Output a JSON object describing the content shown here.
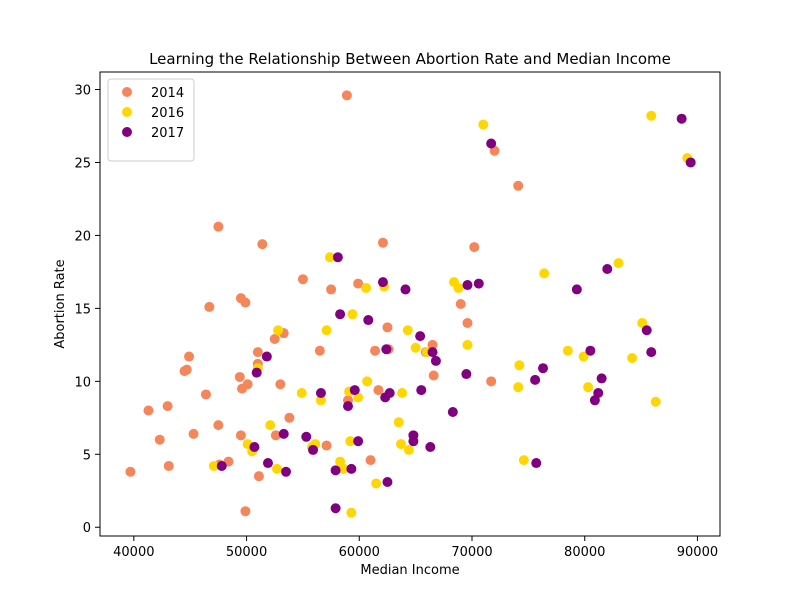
{
  "chart_data": {
    "type": "scatter",
    "title": "Learning the Relationship Between Abortion Rate and Median Income",
    "xlabel": "Median Income",
    "ylabel": "Abortion Rate",
    "xlim": [
      37000,
      92000
    ],
    "ylim": [
      -0.6,
      31.2
    ],
    "xticks": [
      40000,
      50000,
      60000,
      70000,
      80000,
      90000
    ],
    "yticks": [
      0,
      5,
      10,
      15,
      20,
      25,
      30
    ],
    "grid": false,
    "legend_position": "top-left",
    "series": [
      {
        "name": "2014",
        "color": "#f4865a",
        "points": [
          [
            39700,
            3.8
          ],
          [
            41300,
            8.0
          ],
          [
            42300,
            6.0
          ],
          [
            43000,
            8.3
          ],
          [
            43100,
            4.2
          ],
          [
            44500,
            10.7
          ],
          [
            44700,
            10.8
          ],
          [
            44900,
            11.7
          ],
          [
            45300,
            6.4
          ],
          [
            46400,
            9.1
          ],
          [
            46700,
            15.1
          ],
          [
            47500,
            7.0
          ],
          [
            47500,
            20.6
          ],
          [
            47600,
            4.3
          ],
          [
            48400,
            4.5
          ],
          [
            49400,
            10.3
          ],
          [
            49500,
            15.7
          ],
          [
            49500,
            6.3
          ],
          [
            49600,
            9.5
          ],
          [
            49900,
            1.1
          ],
          [
            49900,
            15.4
          ],
          [
            50100,
            9.8
          ],
          [
            50600,
            5.4
          ],
          [
            51000,
            12.0
          ],
          [
            51000,
            11.2
          ],
          [
            51100,
            3.5
          ],
          [
            51400,
            19.4
          ],
          [
            52500,
            12.9
          ],
          [
            52600,
            6.3
          ],
          [
            53000,
            9.8
          ],
          [
            53300,
            13.3
          ],
          [
            53800,
            7.5
          ],
          [
            55000,
            17.0
          ],
          [
            56500,
            12.1
          ],
          [
            57100,
            5.6
          ],
          [
            57500,
            16.3
          ],
          [
            58900,
            29.6
          ],
          [
            59000,
            8.7
          ],
          [
            59900,
            16.7
          ],
          [
            61000,
            4.6
          ],
          [
            61400,
            12.1
          ],
          [
            61700,
            9.4
          ],
          [
            62100,
            19.5
          ],
          [
            62500,
            13.7
          ],
          [
            62600,
            12.2
          ],
          [
            65900,
            12.0
          ],
          [
            66500,
            12.5
          ],
          [
            66600,
            10.4
          ],
          [
            69000,
            15.3
          ],
          [
            69600,
            14.0
          ],
          [
            70200,
            19.2
          ],
          [
            71700,
            10.0
          ],
          [
            72000,
            25.8
          ],
          [
            74100,
            23.4
          ]
        ]
      },
      {
        "name": "2016",
        "color": "#ffd700",
        "points": [
          [
            47100,
            4.2
          ],
          [
            50100,
            5.7
          ],
          [
            50500,
            5.2
          ],
          [
            51000,
            10.9
          ],
          [
            52100,
            7.0
          ],
          [
            52700,
            4.0
          ],
          [
            52800,
            13.5
          ],
          [
            54900,
            9.2
          ],
          [
            55800,
            5.5
          ],
          [
            56100,
            5.7
          ],
          [
            56600,
            8.7
          ],
          [
            57100,
            13.5
          ],
          [
            57400,
            18.5
          ],
          [
            58300,
            4.5
          ],
          [
            58600,
            4.0
          ],
          [
            59100,
            9.3
          ],
          [
            59200,
            5.9
          ],
          [
            59300,
            1.0
          ],
          [
            59400,
            14.6
          ],
          [
            59900,
            8.9
          ],
          [
            60600,
            16.4
          ],
          [
            60700,
            10.0
          ],
          [
            61500,
            3.0
          ],
          [
            62200,
            16.5
          ],
          [
            63500,
            7.2
          ],
          [
            63700,
            5.7
          ],
          [
            63800,
            9.2
          ],
          [
            64300,
            13.5
          ],
          [
            64400,
            5.3
          ],
          [
            65000,
            12.3
          ],
          [
            66000,
            12.0
          ],
          [
            68400,
            16.8
          ],
          [
            68800,
            16.4
          ],
          [
            69600,
            12.5
          ],
          [
            71000,
            27.6
          ],
          [
            74100,
            9.6
          ],
          [
            74200,
            11.1
          ],
          [
            74600,
            4.6
          ],
          [
            76400,
            17.4
          ],
          [
            78500,
            12.1
          ],
          [
            79900,
            11.7
          ],
          [
            80300,
            9.6
          ],
          [
            83000,
            18.1
          ],
          [
            84200,
            11.6
          ],
          [
            85100,
            14.0
          ],
          [
            85900,
            28.2
          ],
          [
            86300,
            8.6
          ],
          [
            89100,
            25.3
          ]
        ]
      },
      {
        "name": "2017",
        "color": "#800080",
        "points": [
          [
            47800,
            4.2
          ],
          [
            50700,
            5.5
          ],
          [
            50900,
            10.6
          ],
          [
            51800,
            11.7
          ],
          [
            51900,
            4.4
          ],
          [
            53300,
            6.4
          ],
          [
            53500,
            3.8
          ],
          [
            55300,
            6.2
          ],
          [
            55900,
            5.3
          ],
          [
            56600,
            9.2
          ],
          [
            57900,
            1.3
          ],
          [
            57900,
            3.9
          ],
          [
            58100,
            18.5
          ],
          [
            58300,
            14.6
          ],
          [
            59000,
            8.3
          ],
          [
            59300,
            4.0
          ],
          [
            59600,
            9.4
          ],
          [
            59900,
            5.9
          ],
          [
            60800,
            14.2
          ],
          [
            62100,
            16.8
          ],
          [
            62300,
            8.9
          ],
          [
            62400,
            12.2
          ],
          [
            62500,
            3.1
          ],
          [
            62700,
            9.2
          ],
          [
            64100,
            16.3
          ],
          [
            64800,
            6.3
          ],
          [
            64800,
            5.9
          ],
          [
            65400,
            13.1
          ],
          [
            65500,
            9.4
          ],
          [
            66300,
            5.5
          ],
          [
            66500,
            12.0
          ],
          [
            66800,
            11.4
          ],
          [
            68300,
            7.9
          ],
          [
            69500,
            10.5
          ],
          [
            69600,
            16.6
          ],
          [
            70600,
            16.7
          ],
          [
            71700,
            26.3
          ],
          [
            75600,
            10.1
          ],
          [
            75700,
            4.4
          ],
          [
            76300,
            10.9
          ],
          [
            79300,
            16.3
          ],
          [
            80500,
            12.1
          ],
          [
            80900,
            8.7
          ],
          [
            81200,
            9.2
          ],
          [
            81500,
            10.2
          ],
          [
            82000,
            17.7
          ],
          [
            85500,
            13.5
          ],
          [
            85900,
            12.0
          ],
          [
            88600,
            28.0
          ],
          [
            89400,
            25.0
          ]
        ]
      }
    ]
  }
}
